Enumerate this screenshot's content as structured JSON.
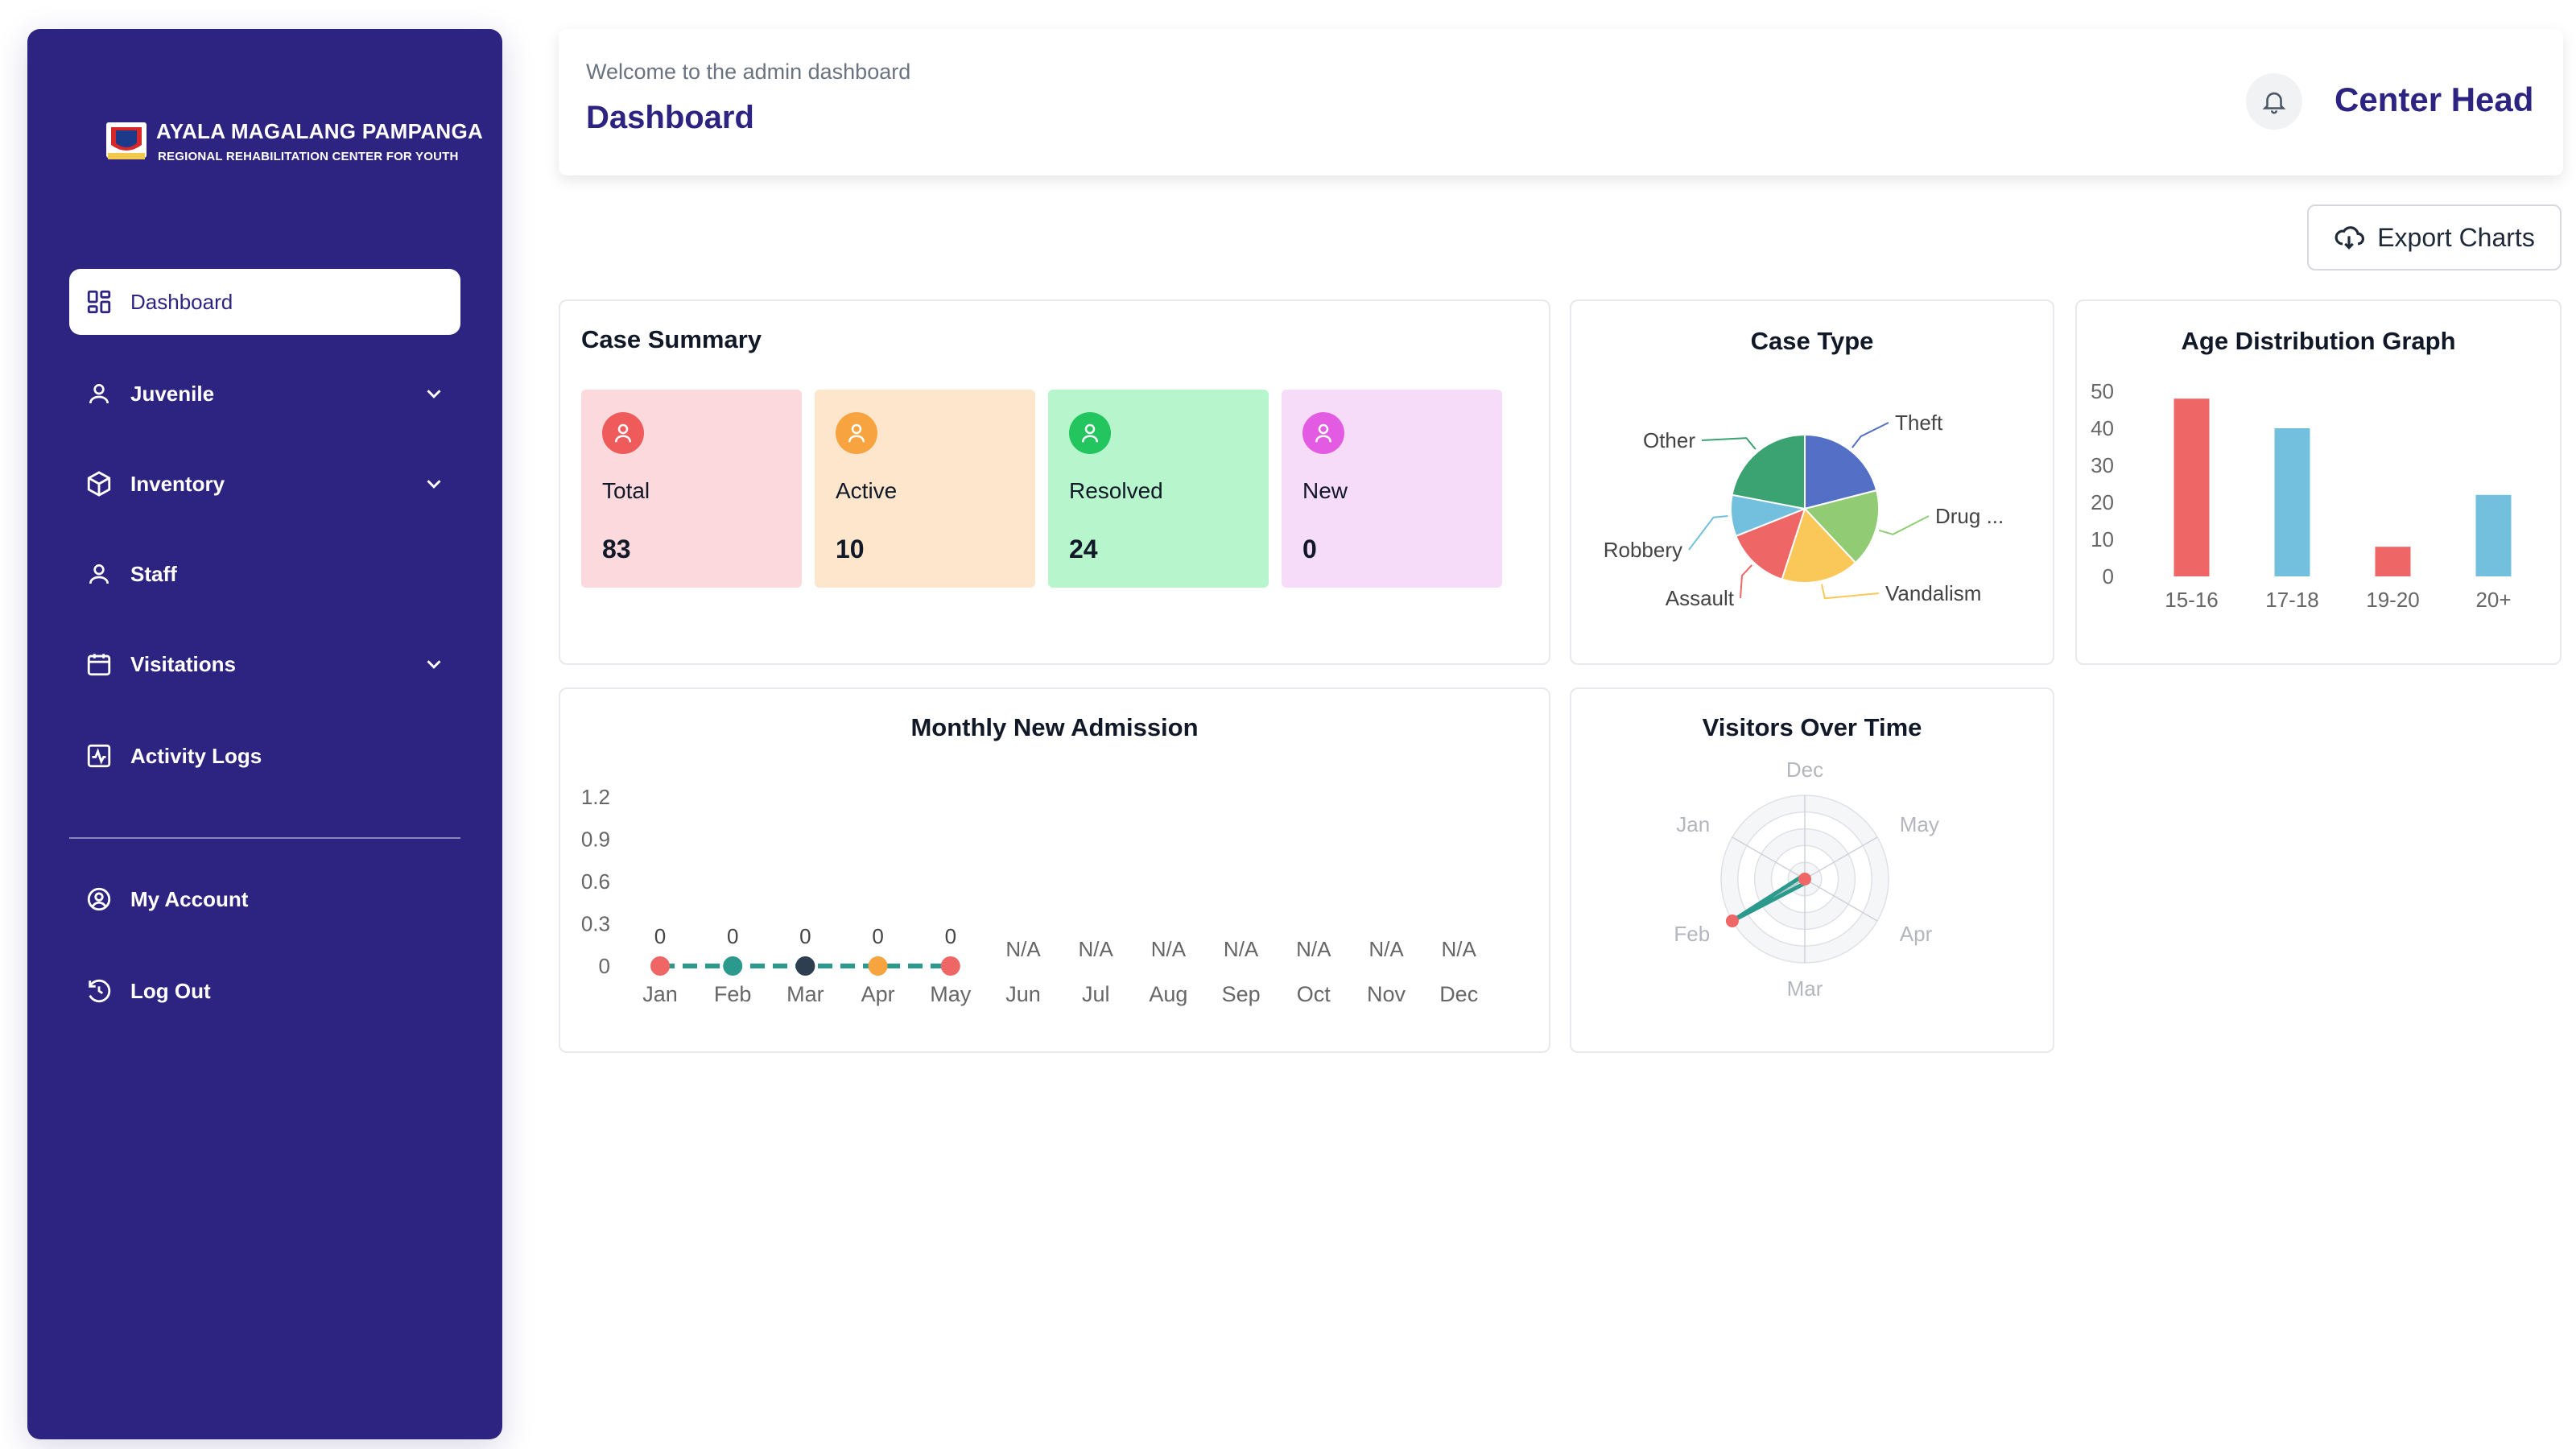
{
  "brand": {
    "name": "AYALA MAGALANG PAMPANGA",
    "subtitle": "REGIONAL REHABILITATION CENTER FOR YOUTH"
  },
  "sidebar": {
    "items": [
      {
        "label": "Dashboard",
        "icon": "grid-icon",
        "active": true
      },
      {
        "label": "Juvenile",
        "icon": "user-icon",
        "has_submenu": true
      },
      {
        "label": "Inventory",
        "icon": "box-icon",
        "has_submenu": true
      },
      {
        "label": "Staff",
        "icon": "user-icon"
      },
      {
        "label": "Visitations",
        "icon": "calendar-icon",
        "has_submenu": true
      },
      {
        "label": "Activity Logs",
        "icon": "activity-icon"
      }
    ],
    "bottom_items": [
      {
        "label": "My Account",
        "icon": "account-circle-icon"
      },
      {
        "label": "Log Out",
        "icon": "logout-icon"
      }
    ]
  },
  "header": {
    "welcome": "Welcome to the admin dashboard",
    "title": "Dashboard",
    "role": "Center Head"
  },
  "toolbar": {
    "export_label": "Export Charts"
  },
  "case_summary": {
    "title": "Case Summary",
    "stats": [
      {
        "label": "Total",
        "value": "83",
        "bg": "#fbd9dc",
        "icon_color": "#ef5a5a"
      },
      {
        "label": "Active",
        "value": "10",
        "bg": "#fde6cc",
        "icon_color": "#f7a440"
      },
      {
        "label": "Resolved",
        "value": "24",
        "bg": "#b7f5cd",
        "icon_color": "#22c55e"
      },
      {
        "label": "New",
        "value": "0",
        "bg": "#f6dcf8",
        "icon_color": "#e25be2"
      }
    ]
  },
  "colors": {
    "brand": "#2d2482",
    "red": "#ee5f63",
    "blue": "#5b9bd5",
    "teal": "#2b9a8c"
  },
  "chart_data": [
    {
      "id": "case_type",
      "type": "pie",
      "title": "Case Type",
      "labels": [
        "Theft",
        "Drug ...",
        "Vandalism",
        "Assault",
        "Robbery",
        "Other"
      ],
      "values": [
        21,
        17,
        17,
        14,
        9,
        22
      ],
      "colors": [
        "#5470c6",
        "#91cc75",
        "#fac858",
        "#ee6666",
        "#73c0de",
        "#3ba272"
      ]
    },
    {
      "id": "age_distribution",
      "type": "bar",
      "title": "Age Distribution Graph",
      "categories": [
        "15-16",
        "17-18",
        "19-20",
        "20+"
      ],
      "values": [
        48,
        40,
        8,
        22
      ],
      "colors": [
        "#ee6666",
        "#73c0de",
        "#ee6666",
        "#73c0de"
      ],
      "ylim": [
        0,
        50
      ],
      "yticks": [
        0,
        10,
        20,
        30,
        40,
        50
      ]
    },
    {
      "id": "monthly_admission",
      "type": "line",
      "title": "Monthly New Admission",
      "categories": [
        "Jan",
        "Feb",
        "Mar",
        "Apr",
        "May",
        "Jun",
        "Jul",
        "Aug",
        "Sep",
        "Oct",
        "Nov",
        "Dec"
      ],
      "values": [
        0,
        0,
        0,
        0,
        0,
        null,
        null,
        null,
        null,
        null,
        null,
        null
      ],
      "data_labels": [
        "0",
        "0",
        "0",
        "0",
        "0",
        "N/A",
        "N/A",
        "N/A",
        "N/A",
        "N/A",
        "N/A",
        "N/A"
      ],
      "point_colors": [
        "#ee6666",
        "#2b9a8c",
        "#2c3e50",
        "#f7a440",
        "#ee6666"
      ],
      "line_color": "#2b9a8c",
      "ylim": [
        0,
        1.2
      ],
      "yticks": [
        "0",
        "0.3",
        "0.6",
        "0.9",
        "1.2"
      ]
    },
    {
      "id": "visitors_over_time",
      "type": "radar",
      "title": "Visitors Over Time",
      "indicators": [
        "Dec",
        "May",
        "Apr",
        "Mar",
        "Feb",
        "Jan"
      ],
      "values": [
        0,
        0,
        0,
        0,
        1,
        0
      ],
      "line_color": "#2b9a8c",
      "point_color": "#ee6666"
    }
  ]
}
